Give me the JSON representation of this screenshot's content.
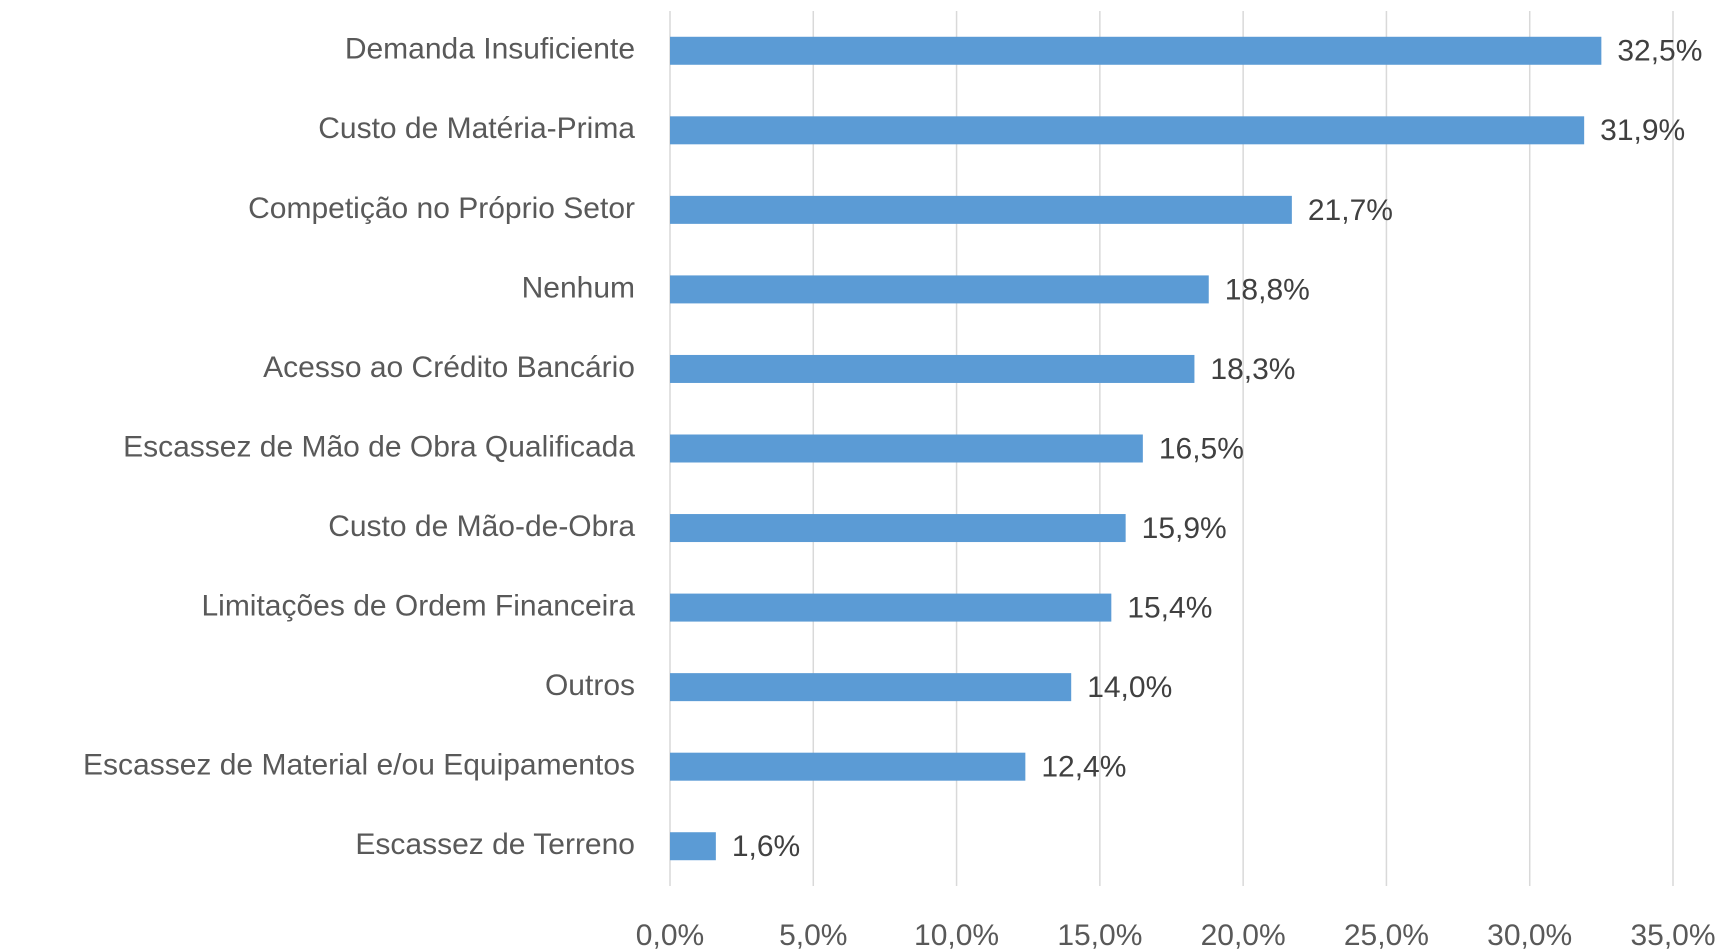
{
  "chart_data": {
    "type": "hbar",
    "categories": [
      "Demanda Insuficiente",
      "Custo de Matéria-Prima",
      "Competição no Próprio Setor",
      "Nenhum",
      "Acesso ao Crédito Bancário",
      "Escassez de Mão de Obra Qualificada",
      "Custo de Mão-de-Obra",
      "Limitações de Ordem Financeira",
      "Outros",
      "Escassez de Material e/ou Equipamentos",
      "Escassez de Terreno"
    ],
    "values": [
      32.5,
      31.9,
      21.7,
      18.8,
      18.3,
      16.5,
      15.9,
      15.4,
      14.0,
      12.4,
      1.6
    ],
    "value_labels": [
      "32,5%",
      "31,9%",
      "21,7%",
      "18,8%",
      "18,3%",
      "16,5%",
      "15,9%",
      "15,4%",
      "14,0%",
      "12,4%",
      "1,6%"
    ],
    "color": "#5b9bd5",
    "xlim": [
      0,
      35
    ],
    "xticks": [
      {
        "value": 0,
        "label": "0,0%"
      },
      {
        "value": 5,
        "label": "5,0%"
      },
      {
        "value": 10,
        "label": "10,0%"
      },
      {
        "value": 15,
        "label": "15,0%"
      },
      {
        "value": 20,
        "label": "20,0%"
      },
      {
        "value": 25,
        "label": "25,0%"
      },
      {
        "value": 30,
        "label": "30,0%"
      },
      {
        "value": 35,
        "label": "35,0%"
      }
    ],
    "grid": true
  }
}
